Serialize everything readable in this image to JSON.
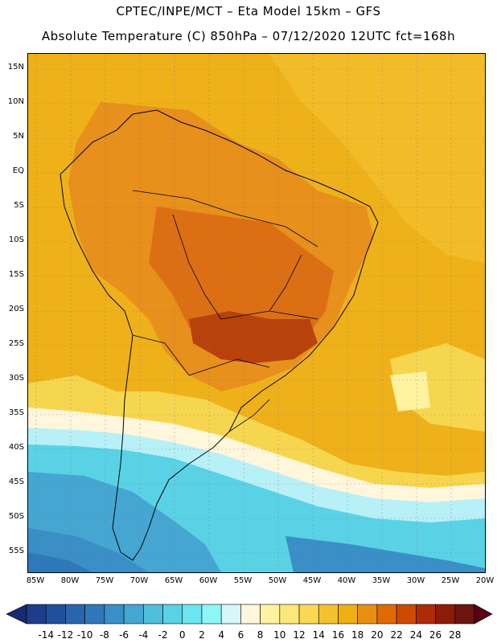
{
  "title_line1": "CPTEC/INPE/MCT –  Eta Model 15km – GFS",
  "title_line2": "Absolute Temperature (C) 850hPa – 07/12/2020 12UTC fct=168h",
  "lat_labels": [
    "15N",
    "10N",
    "5N",
    "EQ",
    "5S",
    "10S",
    "15S",
    "20S",
    "25S",
    "30S",
    "35S",
    "40S",
    "45S",
    "50S",
    "55S"
  ],
  "lon_labels": [
    "85W",
    "80W",
    "75W",
    "70W",
    "65W",
    "60W",
    "55W",
    "50W",
    "45W",
    "40W",
    "35W",
    "30W",
    "25W",
    "20W"
  ],
  "colorbar": {
    "labels": [
      "-14",
      "-12",
      "-10",
      "-8",
      "-6",
      "-4",
      "-2",
      "0",
      "2",
      "4",
      "6",
      "8",
      "10",
      "12",
      "14",
      "16",
      "18",
      "20",
      "22",
      "24",
      "26",
      "28"
    ],
    "colors": [
      "#1f3c88",
      "#23509c",
      "#2a64ab",
      "#2f79b8",
      "#3a8fc6",
      "#46a6d2",
      "#4fbedc",
      "#5ad2e6",
      "#6be6ef",
      "#8ff6f8",
      "#d8f5fa",
      "#fff6dc",
      "#fff3a0",
      "#fce77c",
      "#f8d855",
      "#f3c22f",
      "#efaf12",
      "#e88f10",
      "#e06b06",
      "#cd4a05",
      "#ad2c05",
      "#8e1b08",
      "#6b1410"
    ],
    "under_color": "#1a2a70",
    "over_color": "#5a0014"
  },
  "map_colors": {
    "ocean_warm": "#efb11a",
    "land_hot": "#e7901c",
    "land_hotter": "#dc6f14",
    "land_hottest": "#b8420b",
    "cool_yellow": "#f7d64f",
    "pale_yellow": "#fff3a0",
    "pale": "#fff6dc",
    "cyan_pale": "#b8f0f7",
    "cyan": "#5ad2e6",
    "blue_light": "#46a6d2",
    "blue_mid": "#3a8fc6",
    "blue_dark": "#2f79b8"
  }
}
